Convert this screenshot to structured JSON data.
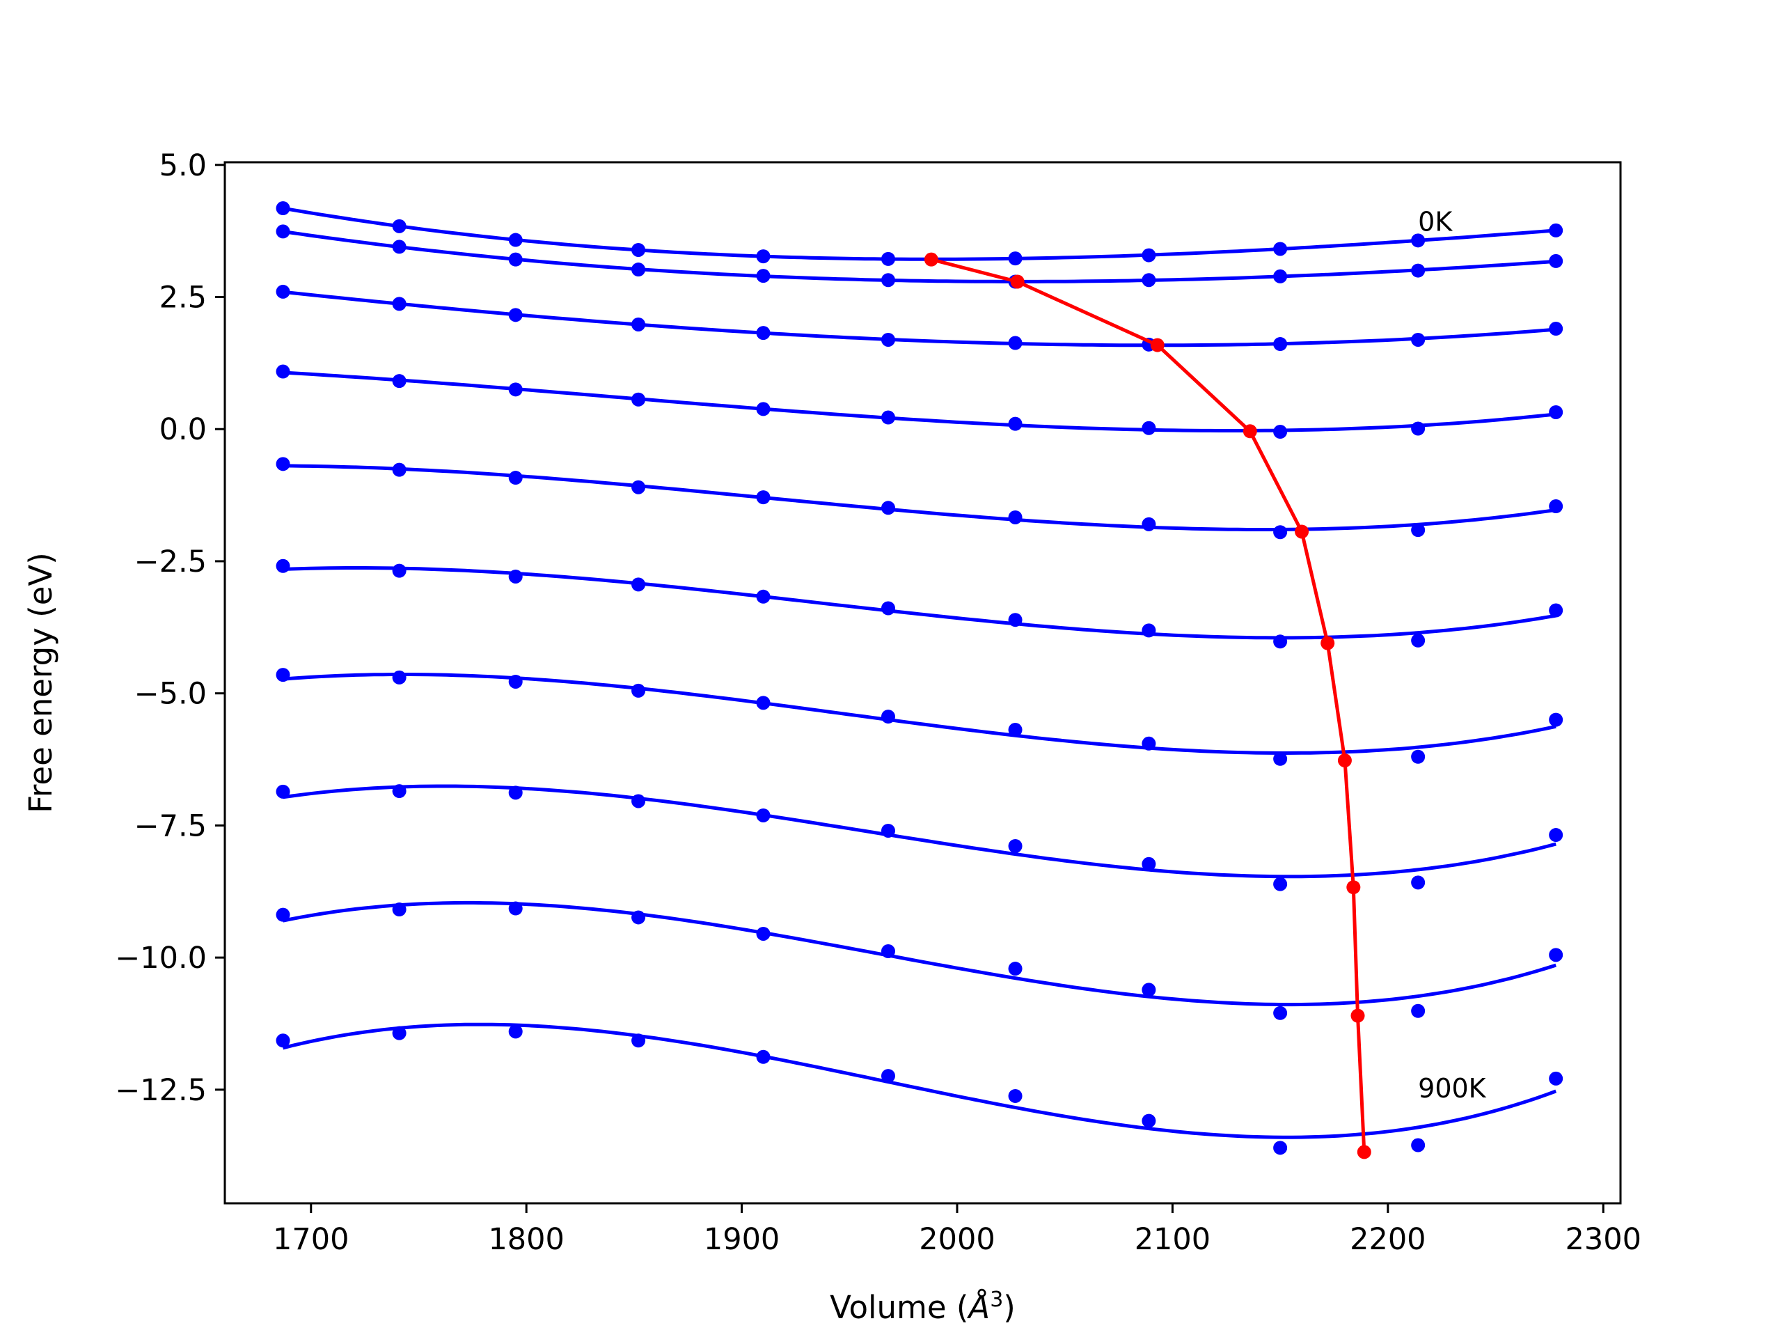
{
  "chart_data": {
    "type": "line",
    "title": "",
    "xlabel": "Volume (Å³)",
    "xlabel_parts": {
      "text": "Volume (",
      "symbol": "Å",
      "exponent": "3",
      "close": ")"
    },
    "ylabel": "Free energy (eV)",
    "xlim": [
      1660,
      2308
    ],
    "ylim": [
      -14.65,
      5.05
    ],
    "xticks": [
      1700,
      1800,
      1900,
      2000,
      2100,
      2200,
      2300
    ],
    "xtick_labels": [
      "1700",
      "1800",
      "1900",
      "2000",
      "2100",
      "2200",
      "2300"
    ],
    "yticks": [
      5.0,
      2.5,
      0.0,
      -2.5,
      -5.0,
      -7.5,
      -10.0,
      -12.5
    ],
    "ytick_labels": [
      "5.0",
      "2.5",
      "0.0",
      "−2.5",
      "−5.0",
      "−7.5",
      "−10.0",
      "−12.5"
    ],
    "annotations": [
      {
        "text": "0K",
        "x": 2214,
        "y": 3.75
      },
      {
        "text": "900K",
        "x": 2214,
        "y": -12.65
      }
    ],
    "x": [
      1687,
      1741,
      1795,
      1852,
      1910,
      1968,
      2027,
      2089,
      2150,
      2214,
      2278
    ],
    "series": [
      {
        "values": [
          4.18,
          3.84,
          3.58,
          3.39,
          3.27,
          3.22,
          3.23,
          3.29,
          3.41,
          3.57,
          3.76
        ]
      },
      {
        "values": [
          3.74,
          3.45,
          3.21,
          3.02,
          2.9,
          2.82,
          2.79,
          2.82,
          2.89,
          3.0,
          3.18
        ]
      },
      {
        "values": [
          2.6,
          2.37,
          2.16,
          1.98,
          1.82,
          1.69,
          1.63,
          1.6,
          1.61,
          1.69,
          1.9
        ]
      },
      {
        "values": [
          1.09,
          0.91,
          0.75,
          0.56,
          0.38,
          0.22,
          0.1,
          0.02,
          -0.05,
          0.01,
          0.32
        ]
      },
      {
        "values": [
          -0.66,
          -0.77,
          -0.92,
          -1.1,
          -1.29,
          -1.49,
          -1.67,
          -1.8,
          -1.95,
          -1.91,
          -1.46
        ]
      },
      {
        "values": [
          -2.59,
          -2.68,
          -2.79,
          -2.94,
          -3.17,
          -3.39,
          -3.61,
          -3.81,
          -4.02,
          -4.0,
          -3.43
        ]
      },
      {
        "values": [
          -4.65,
          -4.7,
          -4.78,
          -4.95,
          -5.18,
          -5.44,
          -5.69,
          -5.95,
          -6.24,
          -6.2,
          -5.5
        ]
      },
      {
        "values": [
          -6.86,
          -6.85,
          -6.88,
          -7.04,
          -7.31,
          -7.6,
          -7.89,
          -8.23,
          -8.61,
          -8.58,
          -7.68
        ]
      },
      {
        "values": [
          -9.19,
          -9.09,
          -9.07,
          -9.24,
          -9.55,
          -9.88,
          -10.21,
          -10.61,
          -11.05,
          -11.01,
          -9.95
        ]
      },
      {
        "values": [
          -11.57,
          -11.43,
          -11.4,
          -11.57,
          -11.88,
          -12.24,
          -12.62,
          -13.09,
          -13.6,
          -13.55,
          -12.29
        ]
      }
    ],
    "minimum_path": {
      "x": [
        1988,
        2028,
        2093,
        2136,
        2160,
        2172,
        2180,
        2184,
        2186,
        2189
      ],
      "y": [
        3.21,
        2.79,
        1.59,
        -0.04,
        -1.94,
        -4.05,
        -6.27,
        -8.67,
        -11.1,
        -13.68
      ]
    },
    "colors": {
      "curve": "#0000ff",
      "minimum_path": "#ff0000",
      "axes": "#000000",
      "background": "#ffffff"
    },
    "grid": false,
    "legend": "none"
  }
}
